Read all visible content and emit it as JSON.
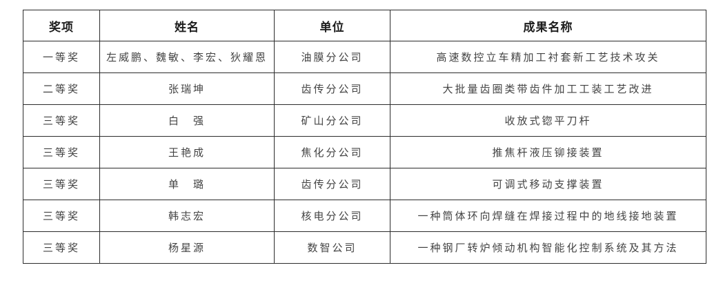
{
  "table": {
    "columns": {
      "award": "奖项",
      "names": "姓名",
      "unit": "单位",
      "achievement": "成果名称"
    },
    "rows": [
      {
        "award": "一等奖",
        "names": "左威鹏、魏敏、李宏、狄耀恩",
        "unit": "油膜分公司",
        "achievement": "高速数控立车精加工衬套新工艺技术攻关"
      },
      {
        "award": "二等奖",
        "names": "张瑞坤",
        "unit": "齿传分公司",
        "achievement": "大批量齿圈类带齿件加工工装工艺改进"
      },
      {
        "award": "三等奖",
        "names": "白　强",
        "unit": "矿山分公司",
        "achievement": "收放式锪平刀杆"
      },
      {
        "award": "三等奖",
        "names": "王艳成",
        "unit": "焦化分公司",
        "achievement": "推焦杆液压铆接装置"
      },
      {
        "award": "三等奖",
        "names": "单　璐",
        "unit": "齿传分公司",
        "achievement": "可调式移动支撑装置"
      },
      {
        "award": "三等奖",
        "names": "韩志宏",
        "unit": "核电分公司",
        "achievement": "一种筒体环向焊缝在焊接过程中的地线接地装置"
      },
      {
        "award": "三等奖",
        "names": "杨星源",
        "unit": "数智公司",
        "achievement": "一种钢厂转炉倾动机构智能化控制系统及其方法"
      }
    ],
    "colors": {
      "border": "#2b2b2b",
      "header_text": "#1c1c1c",
      "body_text": "#434343",
      "background": "#ffffff"
    }
  }
}
